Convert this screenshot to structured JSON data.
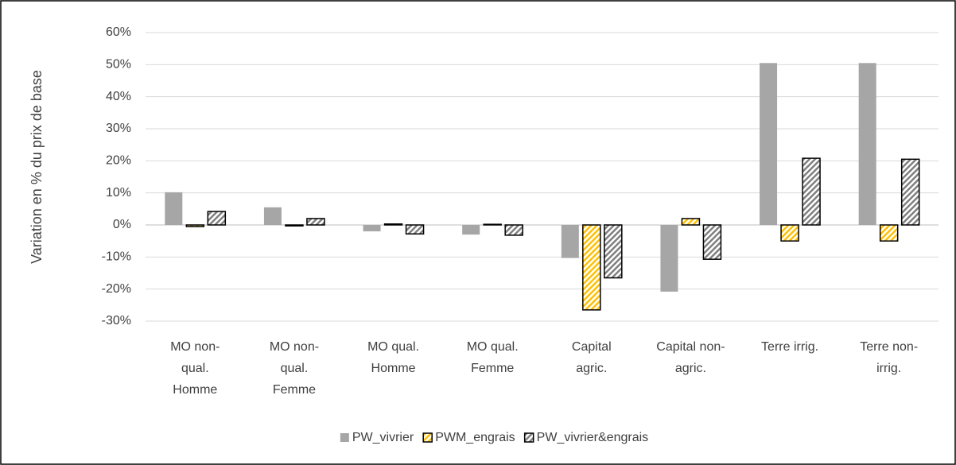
{
  "chart_data": {
    "type": "bar",
    "y_label": "Variation en % du prix de base",
    "categories": [
      [
        "MO non-",
        "qual.",
        "Homme"
      ],
      [
        "MO non-",
        "qual.",
        "Femme"
      ],
      [
        "MO qual.",
        "Homme"
      ],
      [
        "MO qual.",
        "Femme"
      ],
      [
        "Capital",
        "agric."
      ],
      [
        "Capital non-",
        "agric."
      ],
      [
        "Terre irrig."
      ],
      [
        "Terre non-",
        "irrig."
      ]
    ],
    "series": [
      {
        "name": "PW_vivrier",
        "color": "#a6a6a6",
        "values": [
          10.2,
          5.5,
          -2,
          -3,
          -10.3,
          -20.8,
          50.5,
          50.5
        ]
      },
      {
        "name": "PWM_engrais",
        "color": "#ffc000",
        "values": [
          -0.5,
          -0.3,
          0.3,
          0.2,
          -26.5,
          2.0,
          -5,
          -5
        ]
      },
      {
        "name": "PW_vivrier&engrais",
        "color": "#808080",
        "values": [
          4.2,
          2.0,
          -2.8,
          -3.2,
          -16.5,
          -10.7,
          20.8,
          20.5
        ]
      }
    ],
    "ylim": [
      -30,
      60
    ],
    "yticks": [
      {
        "value": -30,
        "label": "-30%"
      },
      {
        "value": -20,
        "label": "-20%"
      },
      {
        "value": -10,
        "label": "-10%"
      },
      {
        "value": 0,
        "label": "0%"
      },
      {
        "value": 10,
        "label": "10%"
      },
      {
        "value": 20,
        "label": "20%"
      },
      {
        "value": 30,
        "label": "30%"
      },
      {
        "value": 40,
        "label": "40%"
      },
      {
        "value": 50,
        "label": "50%"
      },
      {
        "value": 60,
        "label": "60%"
      }
    ],
    "grid": true,
    "legend": "bottom"
  }
}
